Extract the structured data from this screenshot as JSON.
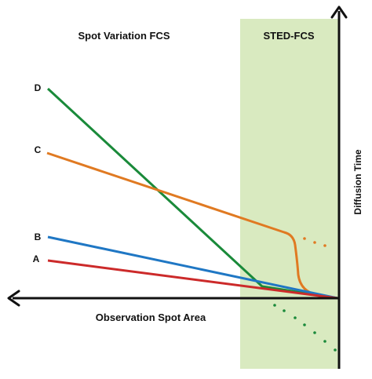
{
  "titles": {
    "left": "Spot Variation FCS",
    "right": "STED-FCS"
  },
  "axes": {
    "x_label": "Observation Spot Area",
    "y_label": "Diffusion Time"
  },
  "curves": [
    {
      "label": "D",
      "color": "#1a8a3a"
    },
    {
      "label": "C",
      "color": "#e07a22"
    },
    {
      "label": "B",
      "color": "#1f77c4"
    },
    {
      "label": "A",
      "color": "#cc2a2a"
    }
  ],
  "colors": {
    "sted_region": "#d9eac0",
    "axis": "#111111"
  }
}
